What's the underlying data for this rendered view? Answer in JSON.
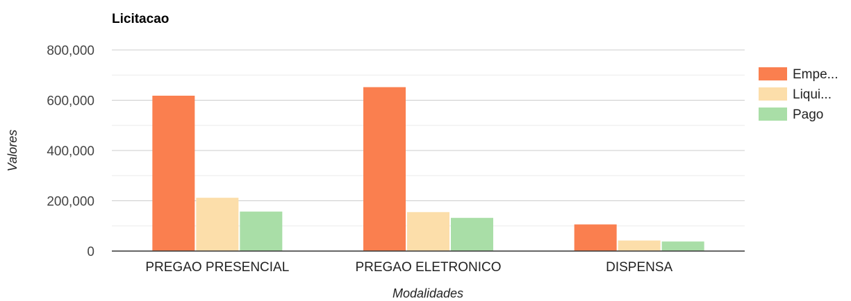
{
  "chart_data": {
    "type": "bar",
    "title": "Licitacao",
    "xlabel": "Modalidades",
    "ylabel": "Valores",
    "categories": [
      "PREGAO PRESENCIAL",
      "PREGAO ELETRONICO",
      "DISPENSA"
    ],
    "series": [
      {
        "name": "Empe...",
        "color": "#fa7f4f",
        "values": [
          618000,
          652000,
          106000
        ]
      },
      {
        "name": "Liqui...",
        "color": "#fcdeaa",
        "values": [
          212000,
          155000,
          42000
        ]
      },
      {
        "name": "Pago",
        "color": "#a9dea7",
        "values": [
          157000,
          132000,
          38000
        ]
      }
    ],
    "ylim": [
      0,
      800000
    ],
    "yticks": [
      0,
      200000,
      400000,
      600000,
      800000
    ],
    "ytick_labels": [
      "0",
      "200,000",
      "400,000",
      "600,000",
      "800,000"
    ],
    "grid": true,
    "legend_position": "right"
  }
}
